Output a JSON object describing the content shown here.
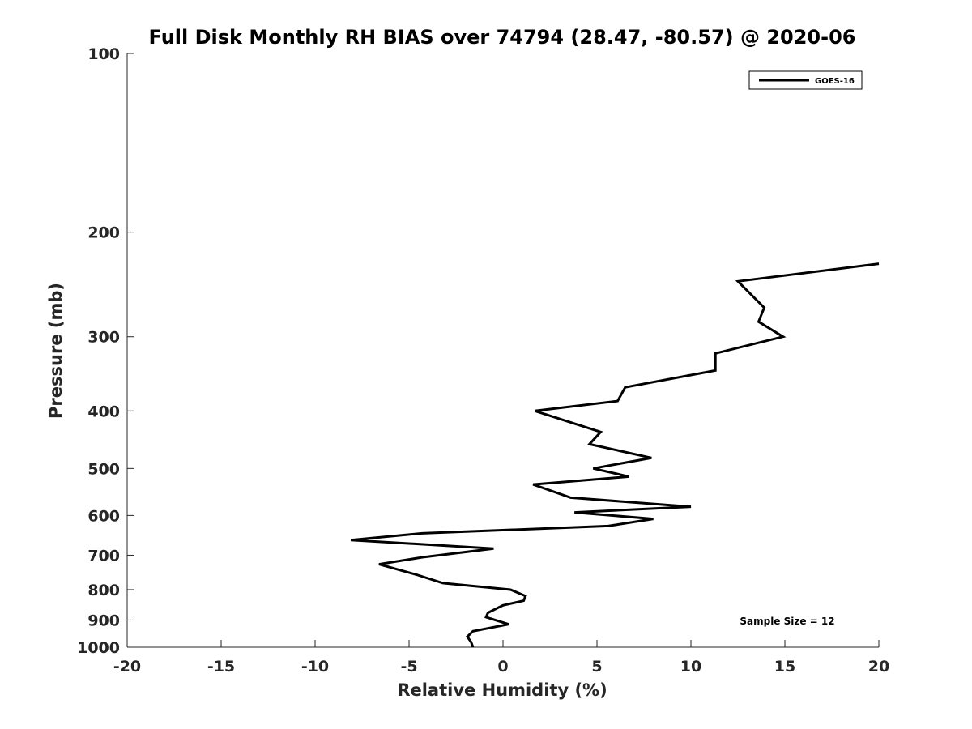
{
  "chart_data": {
    "type": "line",
    "title": "Full Disk Monthly RH BIAS over 74794 (28.47, -80.57) @ 2020-06",
    "xlabel": "Relative Humidity (%)",
    "ylabel": "Pressure (mb)",
    "xlim": [
      -20,
      20
    ],
    "ylim": [
      100,
      1000
    ],
    "y_scale": "log",
    "y_reversed": true,
    "grid": false,
    "x_ticks": [
      -20,
      -15,
      -10,
      -5,
      0,
      5,
      10,
      15,
      20
    ],
    "x_tick_labels": [
      "-20",
      "-15",
      "-10",
      "-5",
      "0",
      "5",
      "10",
      "15",
      "20"
    ],
    "y_ticks": [
      100,
      200,
      300,
      400,
      500,
      600,
      700,
      800,
      900,
      1000
    ],
    "y_tick_labels": [
      "100",
      "200",
      "300",
      "400",
      "500",
      "600",
      "700",
      "800",
      "900",
      "1000"
    ],
    "legend_position": "top-right",
    "annotation": "Sample Size = 12",
    "series": [
      {
        "name": "GOES-16",
        "color": "#000000",
        "points": [
          [
            20.0,
            226
          ],
          [
            12.5,
            242
          ],
          [
            13.9,
            268
          ],
          [
            13.6,
            283
          ],
          [
            14.9,
            300
          ],
          [
            11.3,
            320
          ],
          [
            11.3,
            342
          ],
          [
            6.5,
            365
          ],
          [
            6.1,
            385
          ],
          [
            1.7,
            400
          ],
          [
            5.2,
            434
          ],
          [
            4.6,
            455
          ],
          [
            7.9,
            480
          ],
          [
            4.8,
            500
          ],
          [
            6.7,
            516
          ],
          [
            1.6,
            532
          ],
          [
            3.6,
            560
          ],
          [
            10.0,
            580
          ],
          [
            3.8,
            593
          ],
          [
            8.0,
            608
          ],
          [
            5.6,
            625
          ],
          [
            -4.3,
            643
          ],
          [
            -8.1,
            660
          ],
          [
            -0.5,
            682
          ],
          [
            -4.2,
            705
          ],
          [
            -6.6,
            725
          ],
          [
            -4.6,
            755
          ],
          [
            -3.2,
            780
          ],
          [
            0.4,
            800
          ],
          [
            1.2,
            820
          ],
          [
            1.1,
            835
          ],
          [
            0.0,
            850
          ],
          [
            -0.8,
            875
          ],
          [
            -0.9,
            890
          ],
          [
            0.3,
            915
          ],
          [
            -1.6,
            940
          ],
          [
            -1.9,
            960
          ],
          [
            -1.7,
            980
          ],
          [
            -1.6,
            1000
          ]
        ]
      }
    ]
  }
}
